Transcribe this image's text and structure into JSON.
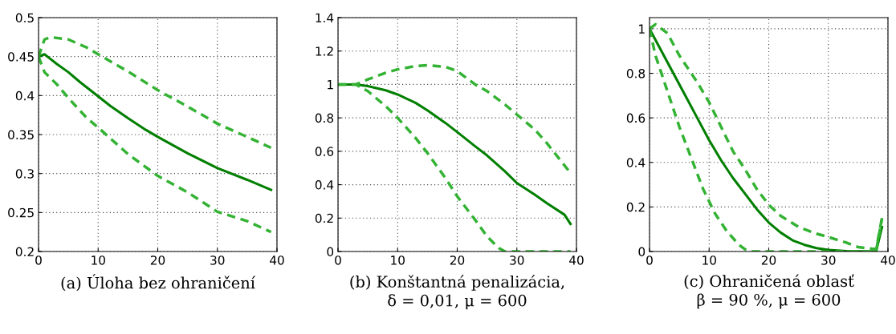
{
  "chart_data": [
    {
      "type": "line",
      "title": "(a) Úloha bez ohraničení",
      "xlim": [
        0,
        40
      ],
      "xticks": [
        0,
        10,
        20,
        30,
        40
      ],
      "ylim": [
        0.2,
        0.5
      ],
      "yticks": [
        0.2,
        0.25,
        0.3,
        0.35,
        0.4,
        0.45,
        0.5
      ],
      "grid": true,
      "series": [
        {
          "color": "#007f00",
          "line_style": "solid",
          "x": [
            0,
            1,
            2,
            3,
            5,
            7,
            10,
            12,
            15,
            18,
            20,
            25,
            30,
            35,
            39
          ],
          "values": [
            0.45,
            0.453,
            0.447,
            0.441,
            0.43,
            0.417,
            0.399,
            0.387,
            0.371,
            0.356,
            0.347,
            0.326,
            0.307,
            0.292,
            0.279
          ]
        },
        {
          "color": "#33b233",
          "line_style": "dashed",
          "x": [
            0,
            1,
            2,
            5,
            8,
            10,
            15,
            20,
            25,
            30,
            35,
            39
          ],
          "values": [
            0.45,
            0.472,
            0.475,
            0.472,
            0.462,
            0.453,
            0.431,
            0.407,
            0.386,
            0.364,
            0.347,
            0.333
          ]
        },
        {
          "color": "#33b233",
          "line_style": "dashed",
          "x": [
            0,
            1,
            3,
            5,
            8,
            10,
            15,
            20,
            25,
            30,
            35,
            39
          ],
          "values": [
            0.45,
            0.43,
            0.415,
            0.397,
            0.372,
            0.359,
            0.325,
            0.297,
            0.276,
            0.251,
            0.239,
            0.225
          ]
        }
      ]
    },
    {
      "type": "line",
      "title": "(b) Konštantná penalizácia,\nδ = 0,01, μ = 600",
      "xlim": [
        0,
        40
      ],
      "xticks": [
        0,
        10,
        20,
        30,
        40
      ],
      "ylim": [
        0,
        1.4
      ],
      "yticks": [
        0,
        0.2,
        0.4,
        0.6,
        0.8,
        1,
        1.2,
        1.4
      ],
      "grid": true,
      "series": [
        {
          "color": "#007f00",
          "line_style": "solid",
          "x": [
            0,
            3,
            5,
            8,
            10,
            13,
            15,
            18,
            20,
            23,
            25,
            28,
            30,
            33,
            35,
            38,
            39
          ],
          "values": [
            1,
            1,
            0.99,
            0.965,
            0.94,
            0.89,
            0.845,
            0.77,
            0.715,
            0.63,
            0.575,
            0.48,
            0.41,
            0.34,
            0.29,
            0.22,
            0.165
          ]
        },
        {
          "color": "#33b233",
          "line_style": "dashed",
          "x": [
            0,
            3,
            5,
            8,
            10,
            13,
            15,
            18,
            20,
            23,
            25,
            28,
            30,
            33,
            35,
            37,
            39
          ],
          "values": [
            1,
            1,
            1.03,
            1.07,
            1.09,
            1.11,
            1.115,
            1.105,
            1.08,
            1.0,
            0.96,
            0.88,
            0.82,
            0.73,
            0.65,
            0.56,
            0.47
          ]
        },
        {
          "color": "#33b233",
          "line_style": "dashed",
          "x": [
            0,
            3,
            5,
            8,
            10,
            13,
            15,
            18,
            20,
            23,
            25,
            27,
            28,
            39
          ],
          "values": [
            1,
            1,
            0.96,
            0.87,
            0.8,
            0.68,
            0.59,
            0.44,
            0.33,
            0.19,
            0.09,
            0.02,
            0,
            0
          ]
        }
      ]
    },
    {
      "type": "line",
      "title": "(c) Ohraničená oblasť\nβ = 90 %, μ = 600",
      "xlim": [
        0,
        40
      ],
      "xticks": [
        0,
        10,
        20,
        30,
        40
      ],
      "ylim": [
        0,
        1.05
      ],
      "yticks": [
        0,
        0.2,
        0.4,
        0.6,
        0.8,
        1
      ],
      "grid": true,
      "series": [
        {
          "color": "#007f00",
          "line_style": "solid",
          "x": [
            0,
            2,
            4,
            6,
            8,
            10,
            12,
            14,
            16,
            18,
            20,
            22,
            24,
            26,
            28,
            30,
            33,
            38,
            39
          ],
          "values": [
            1,
            0.9,
            0.8,
            0.7,
            0.6,
            0.5,
            0.41,
            0.33,
            0.26,
            0.19,
            0.13,
            0.085,
            0.05,
            0.03,
            0.015,
            0.007,
            0.002,
            0,
            0.11
          ]
        },
        {
          "color": "#33b233",
          "line_style": "dashed",
          "x": [
            0,
            1,
            3,
            5,
            8,
            10,
            12,
            14,
            16,
            18,
            20,
            22,
            25,
            28,
            30,
            33,
            35,
            38,
            39
          ],
          "values": [
            1,
            1.02,
            0.98,
            0.88,
            0.76,
            0.67,
            0.56,
            0.45,
            0.37,
            0.28,
            0.21,
            0.16,
            0.11,
            0.08,
            0.065,
            0.04,
            0.02,
            0.01,
            0.15
          ]
        },
        {
          "color": "#33b233",
          "line_style": "dashed",
          "x": [
            0,
            1,
            3,
            5,
            7,
            9,
            11,
            13,
            15,
            16,
            17,
            38,
            39
          ],
          "values": [
            1,
            0.88,
            0.72,
            0.56,
            0.42,
            0.28,
            0.17,
            0.09,
            0.03,
            0.01,
            0,
            0,
            0.15
          ]
        }
      ]
    }
  ]
}
